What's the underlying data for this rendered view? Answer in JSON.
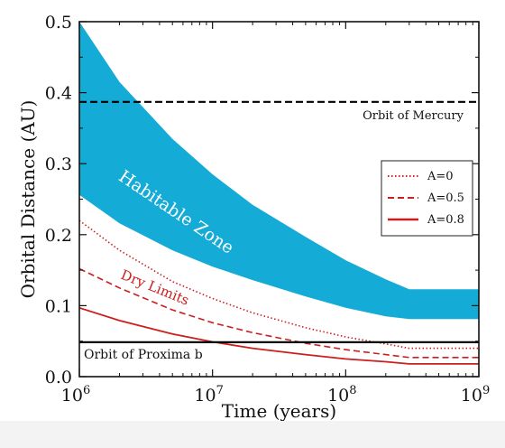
{
  "chart_data": {
    "type": "area",
    "xlabel": "Time (years)",
    "ylabel": "Orbital Distance (AU)",
    "xscale": "log",
    "xlim": [
      1000000,
      1000000000
    ],
    "ylim": [
      0,
      0.5
    ],
    "xticks": [
      {
        "value": 1000000,
        "base": "10",
        "exp": "6"
      },
      {
        "value": 10000000,
        "base": "10",
        "exp": "7"
      },
      {
        "value": 100000000,
        "base": "10",
        "exp": "8"
      },
      {
        "value": 1000000000,
        "base": "10",
        "exp": "9"
      }
    ],
    "yticks": [
      {
        "value": 0.0,
        "label": "0.0"
      },
      {
        "value": 0.1,
        "label": "0.1"
      },
      {
        "value": 0.2,
        "label": "0.2"
      },
      {
        "value": 0.3,
        "label": "0.3"
      },
      {
        "value": 0.4,
        "label": "0.4"
      },
      {
        "value": 0.5,
        "label": "0.5"
      }
    ],
    "habitable_zone": {
      "label": "Habitable Zone",
      "color": "#14abd6",
      "x": [
        1000000,
        2000000,
        5000000,
        10000000,
        20000000,
        50000000,
        100000000,
        200000000,
        300000000,
        1000000000
      ],
      "inner": [
        0.256,
        0.216,
        0.178,
        0.155,
        0.136,
        0.113,
        0.097,
        0.085,
        0.081,
        0.081
      ],
      "outer": [
        0.5,
        0.415,
        0.335,
        0.285,
        0.242,
        0.197,
        0.164,
        0.137,
        0.123,
        0.123
      ]
    },
    "series": [
      {
        "name": "A=0",
        "style": "dotted",
        "color": "#cc1e1e",
        "x": [
          1000000,
          2000000,
          5000000,
          10000000,
          20000000,
          50000000,
          100000000,
          200000000,
          300000000,
          1000000000
        ],
        "values": [
          0.22,
          0.178,
          0.134,
          0.11,
          0.09,
          0.069,
          0.056,
          0.046,
          0.04,
          0.04
        ]
      },
      {
        "name": "A=0.5",
        "style": "dashed",
        "color": "#cc1e1e",
        "x": [
          1000000,
          2000000,
          5000000,
          10000000,
          20000000,
          50000000,
          100000000,
          200000000,
          300000000,
          1000000000
        ],
        "values": [
          0.152,
          0.125,
          0.094,
          0.076,
          0.062,
          0.047,
          0.038,
          0.031,
          0.027,
          0.027
        ]
      },
      {
        "name": "A=0.8",
        "style": "solid",
        "color": "#cc1e1e",
        "x": [
          1000000,
          2000000,
          5000000,
          10000000,
          20000000,
          50000000,
          100000000,
          200000000,
          300000000,
          1000000000
        ],
        "values": [
          0.097,
          0.079,
          0.06,
          0.049,
          0.04,
          0.031,
          0.025,
          0.021,
          0.018,
          0.018
        ]
      }
    ],
    "reference_lines": [
      {
        "label": "Orbit of Mercury",
        "y": 0.387,
        "style": "dashed",
        "color": "#000000"
      },
      {
        "label": "Orbit of Proxima b",
        "y": 0.0485,
        "style": "solid",
        "color": "#000000"
      }
    ],
    "annotations": {
      "dry_limits": {
        "label": "Dry Limits",
        "color": "#cc1e1e"
      }
    },
    "legend": "right",
    "grid": false
  }
}
